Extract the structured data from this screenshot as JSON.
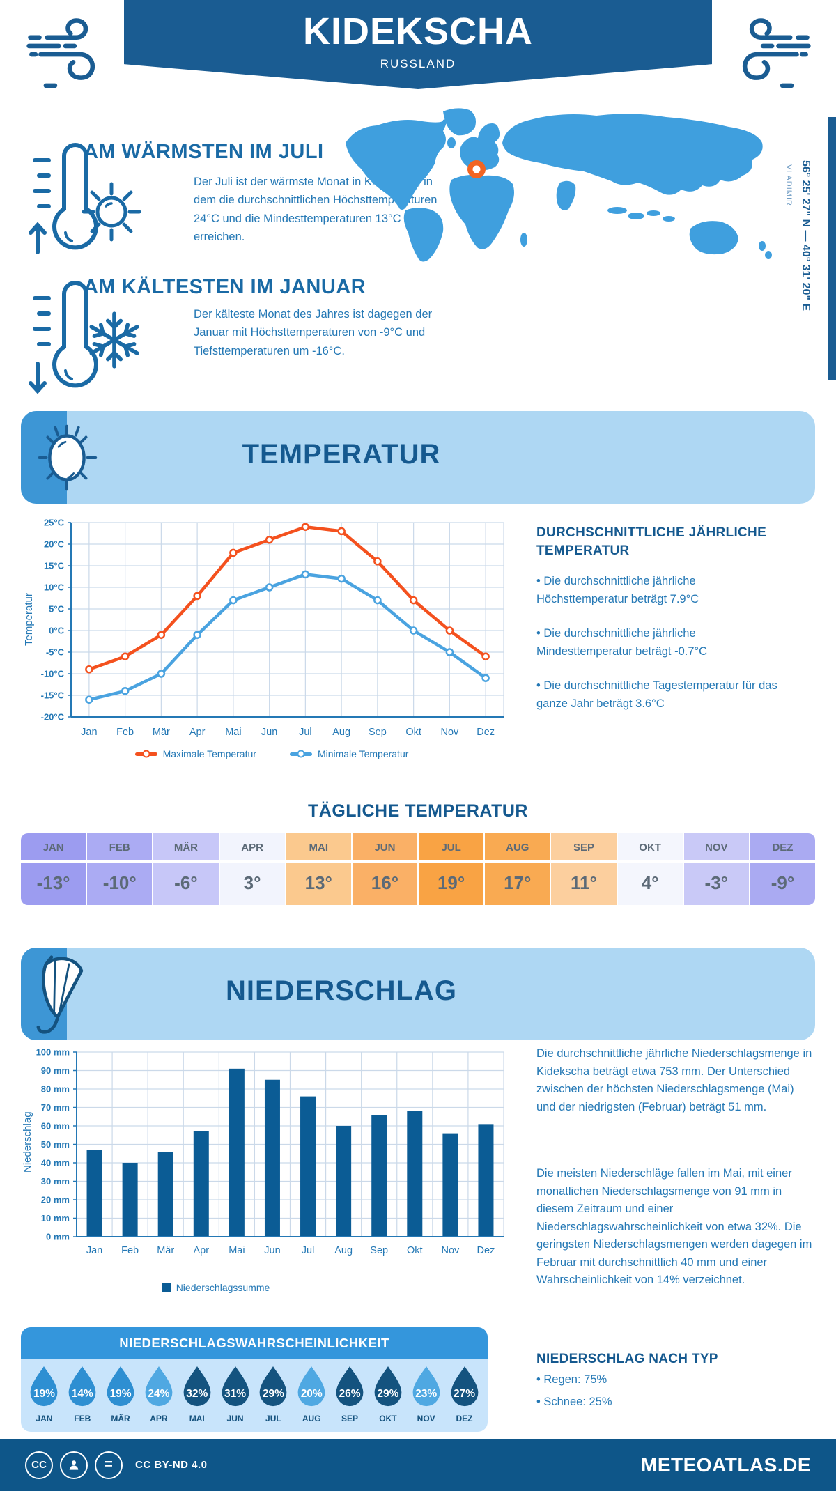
{
  "header": {
    "title": "KIDEKSCHA",
    "subtitle": "RUSSLAND"
  },
  "location": {
    "coordinates": "56° 25' 27\" N — 40° 31' 20\" E",
    "region": "VLADIMIR"
  },
  "warmest": {
    "heading": "AM WÄRMSTEN IM JULI",
    "text": "Der Juli ist der wärmste Monat in Kidekscha, in dem die durchschnittlichen Höchsttemperaturen 24°C und die Mindesttemperaturen 13°C erreichen."
  },
  "coldest": {
    "heading": "AM KÄLTESTEN IM JANUAR",
    "text": "Der kälteste Monat des Jahres ist dagegen der Januar mit Höchsttemperaturen von -9°C und Tiefsttemperaturen um -16°C."
  },
  "sections": {
    "temperature": {
      "title": "TEMPERATUR"
    },
    "precipitation": {
      "title": "NIEDERSCHLAG"
    }
  },
  "annual": {
    "heading": "DURCHSCHNITTLICHE JÄHRLICHE TEMPERATUR",
    "bullets": [
      "• Die durchschnittliche jährliche Höchsttemperatur beträgt 7.9°C",
      "• Die durchschnittliche jährliche Mindesttemperatur beträgt -0.7°C",
      "• Die durchschnittliche Tagestemperatur für das ganze Jahr beträgt 3.6°C"
    ]
  },
  "daily": {
    "title": "TÄGLICHE TEMPERATUR",
    "months": [
      {
        "label": "JAN",
        "value": "-13°",
        "bg": "#9C9CF0"
      },
      {
        "label": "FEB",
        "value": "-10°",
        "bg": "#ABABF3"
      },
      {
        "label": "MÄR",
        "value": "-6°",
        "bg": "#C7C7F8"
      },
      {
        "label": "APR",
        "value": "3°",
        "bg": "#F2F4FD"
      },
      {
        "label": "MAI",
        "value": "13°",
        "bg": "#FBC98E"
      },
      {
        "label": "JUN",
        "value": "16°",
        "bg": "#FAB066"
      },
      {
        "label": "JUL",
        "value": "19°",
        "bg": "#F9A344"
      },
      {
        "label": "AUG",
        "value": "17°",
        "bg": "#F9AA52"
      },
      {
        "label": "SEP",
        "value": "11°",
        "bg": "#FCCF9E"
      },
      {
        "label": "OKT",
        "value": "4°",
        "bg": "#F4F6FD"
      },
      {
        "label": "NOV",
        "value": "-3°",
        "bg": "#C9C9F7"
      },
      {
        "label": "DEZ",
        "value": "-9°",
        "bg": "#AAAAF2"
      }
    ]
  },
  "precipitation_text": {
    "paragraphs": [
      "Die durchschnittliche jährliche Niederschlagsmenge in Kidekscha beträgt etwa 753 mm. Der Unterschied zwischen der höchsten Niederschlagsmenge (Mai) und der niedrigsten (Februar) beträgt 51 mm.",
      "Die meisten Niederschläge fallen im Mai, mit einer monatlichen Niederschlagsmenge von 91 mm in diesem Zeitraum und einer Niederschlagswahrscheinlichkeit von etwa 32%. Die geringsten Niederschlagsmengen werden dagegen im Februar mit durchschnittlich 40 mm und einer Wahrscheinlichkeit von 14% verzeichnet."
    ]
  },
  "probability": {
    "title": "NIEDERSCHLAGSWAHRSCHEINLICHKEIT",
    "shades": {
      "light": "#4FA8E2",
      "medium": "#2E8FD2",
      "dark": "#14537F"
    },
    "drops": [
      {
        "month": "JAN",
        "value": "19%",
        "shade": "medium"
      },
      {
        "month": "FEB",
        "value": "14%",
        "shade": "medium"
      },
      {
        "month": "MÄR",
        "value": "19%",
        "shade": "medium"
      },
      {
        "month": "APR",
        "value": "24%",
        "shade": "light"
      },
      {
        "month": "MAI",
        "value": "32%",
        "shade": "dark"
      },
      {
        "month": "JUN",
        "value": "31%",
        "shade": "dark"
      },
      {
        "month": "JUL",
        "value": "29%",
        "shade": "dark"
      },
      {
        "month": "AUG",
        "value": "20%",
        "shade": "light"
      },
      {
        "month": "SEP",
        "value": "26%",
        "shade": "dark"
      },
      {
        "month": "OKT",
        "value": "29%",
        "shade": "dark"
      },
      {
        "month": "NOV",
        "value": "23%",
        "shade": "light"
      },
      {
        "month": "DEZ",
        "value": "27%",
        "shade": "dark"
      }
    ]
  },
  "by_type": {
    "heading": "NIEDERSCHLAG NACH TYP",
    "items": [
      "• Regen: 75%",
      "• Schnee: 25%"
    ]
  },
  "footer": {
    "license": "CC BY-ND 4.0",
    "site": "METEOATLAS.DE"
  },
  "icons": {
    "wind": "wind-swirl-icon",
    "warm": "thermometer-sun-icon",
    "cold": "thermometer-snowflake-icon",
    "sun": "sun-icon",
    "snowflake": "snowflake-icon",
    "umbrella": "umbrella-icon",
    "drop": "water-drop-icon",
    "map_marker": "location-marker-icon"
  },
  "colors": {
    "dark_blue": "#1A5C92",
    "light_banner": "#AED7F3",
    "map_blue": "#3F9FDE",
    "marker_orange": "#F26522"
  },
  "chart_data": [
    {
      "id": "temperature",
      "type": "line",
      "categories": [
        "Jan",
        "Feb",
        "Mär",
        "Apr",
        "Mai",
        "Jun",
        "Jul",
        "Aug",
        "Sep",
        "Okt",
        "Nov",
        "Dez"
      ],
      "series": [
        {
          "name": "Maximale Temperatur",
          "color": "#F4511E",
          "values": [
            -9,
            -6,
            -1,
            8,
            18,
            21,
            24,
            23,
            16,
            7,
            0,
            -6
          ]
        },
        {
          "name": "Minimale Temperatur",
          "color": "#4AA3E0",
          "values": [
            -16,
            -14,
            -10,
            -1,
            7,
            10,
            13,
            12,
            7,
            0,
            -5,
            -11
          ]
        }
      ],
      "ylabel": "Temperatur",
      "ylim": [
        -20,
        25
      ],
      "ytick_step": 5,
      "ytick_suffix": "°C",
      "grid": true,
      "legend_position": "bottom"
    },
    {
      "id": "precipitation",
      "type": "bar",
      "categories": [
        "Jan",
        "Feb",
        "Mär",
        "Apr",
        "Mai",
        "Jun",
        "Jul",
        "Aug",
        "Sep",
        "Okt",
        "Nov",
        "Dez"
      ],
      "values": [
        47,
        40,
        46,
        57,
        91,
        85,
        76,
        60,
        66,
        68,
        56,
        61
      ],
      "series_name": "Niederschlagssumme",
      "color": "#0B5C95",
      "ylabel": "Niederschlag",
      "ylim": [
        0,
        100
      ],
      "ytick_step": 10,
      "ytick_suffix": " mm",
      "grid": true,
      "legend_position": "bottom"
    }
  ]
}
